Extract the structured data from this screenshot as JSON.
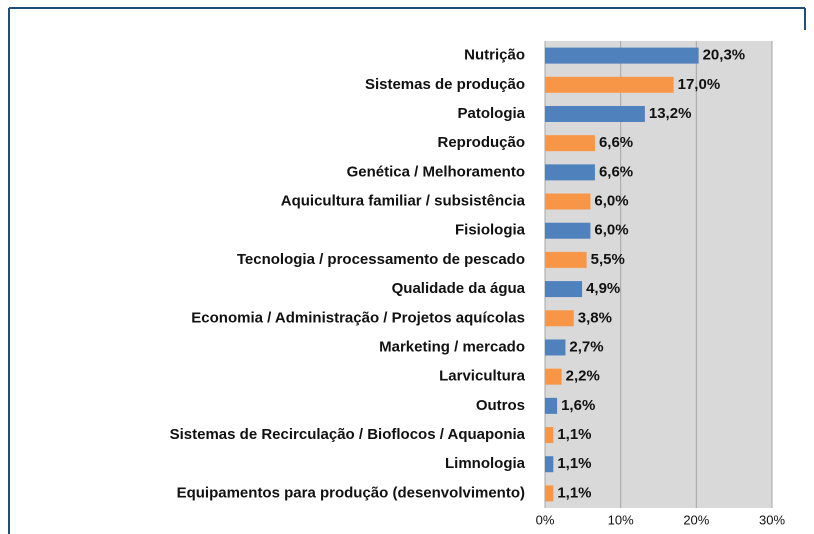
{
  "chart_data": {
    "type": "barh",
    "categories": [
      "Nutrição",
      "Sistemas de produção",
      "Patologia",
      "Reprodução",
      "Genética / Melhoramento",
      "Aquicultura  familiar / subsistência",
      "Fisiologia",
      "Tecnologia / processamento de pescado",
      "Qualidade da água",
      "Economia / Administração / Projetos aquícolas",
      "Marketing / mercado",
      "Larvicultura",
      "Outros",
      "Sistemas de Recirculação / Bioflocos / Aquaponia",
      "Limnologia",
      "Equipamentos para produção (desenvolvimento)"
    ],
    "values": [
      20.3,
      17.0,
      13.2,
      6.6,
      6.6,
      6.0,
      6.0,
      5.5,
      4.9,
      3.8,
      2.7,
      2.2,
      1.6,
      1.1,
      1.1,
      1.1
    ],
    "value_labels": [
      "20,3%",
      "17,0%",
      "13,2%",
      "6,6%",
      "6,6%",
      "6,0%",
      "6,0%",
      "5,5%",
      "4,9%",
      "3,8%",
      "2,7%",
      "2,2%",
      "1,6%",
      "1,1%",
      "1,1%",
      "1,1%"
    ],
    "colors": [
      "#4f81bd",
      "#f79646",
      "#4f81bd",
      "#f79646",
      "#4f81bd",
      "#f79646",
      "#4f81bd",
      "#f79646",
      "#4f81bd",
      "#f79646",
      "#4f81bd",
      "#f79646",
      "#4f81bd",
      "#f79646",
      "#4f81bd",
      "#f79646"
    ],
    "xlim": [
      0,
      30
    ],
    "xticks": [
      {
        "value": 0,
        "label": "0%"
      },
      {
        "value": 10,
        "label": "10%"
      },
      {
        "value": 20,
        "label": "20%"
      },
      {
        "value": 30,
        "label": "30%"
      }
    ],
    "grid": true
  }
}
